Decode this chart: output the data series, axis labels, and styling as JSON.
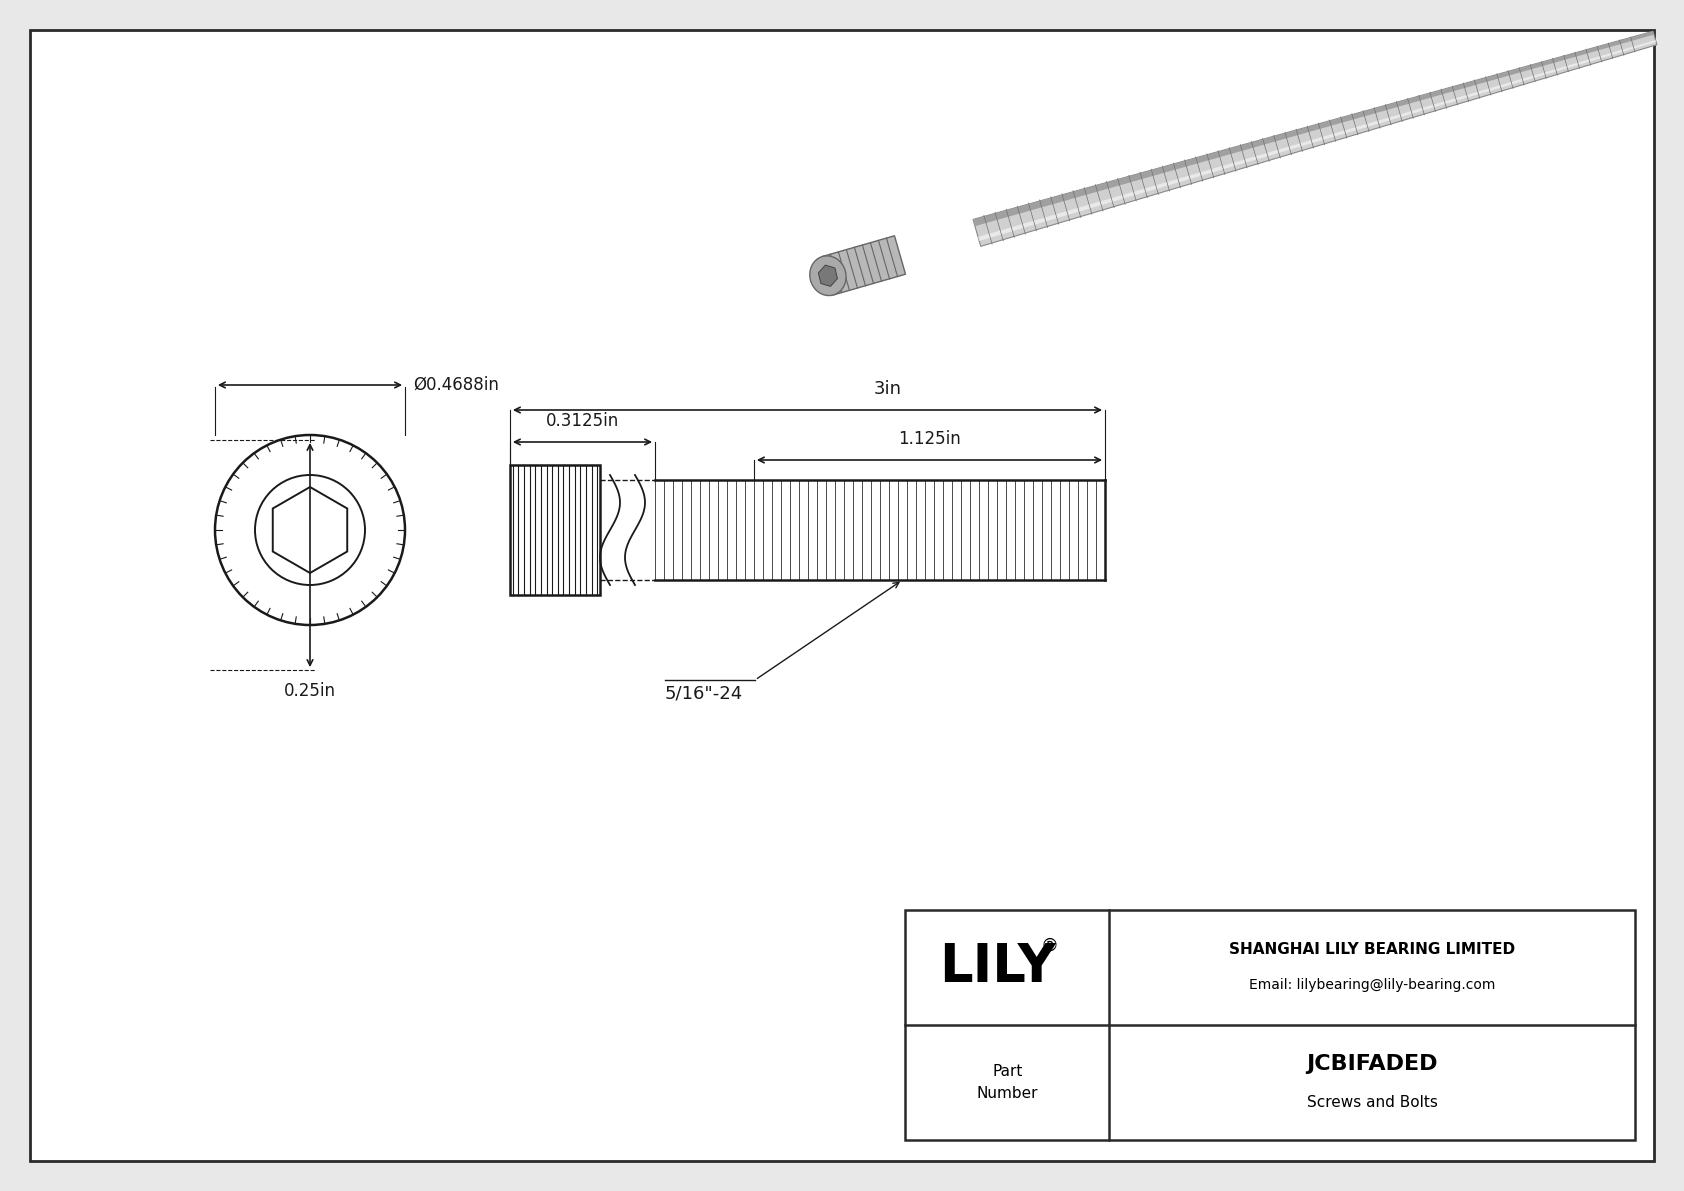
{
  "bg_color": "#e8e8e8",
  "drawing_bg": "#ffffff",
  "border_color": "#2a2a2a",
  "line_color": "#1a1a1a",
  "dim_color": "#1a1a1a",
  "title": "JCBIFADED",
  "subtitle": "Screws and Bolts",
  "company": "SHANGHAI LILY BEARING LIMITED",
  "email": "Email: lilybearing@lily-bearing.com",
  "part_label": "Part\nNumber",
  "lily_text": "LILY",
  "dim_diameter": "Ø0.4688in",
  "dim_head_height": "0.25in",
  "dim_thread_length": "0.3125in",
  "dim_total_length": "3in",
  "dim_grip_length": "1.125in",
  "dim_thread_spec": "5/16\"-24"
}
